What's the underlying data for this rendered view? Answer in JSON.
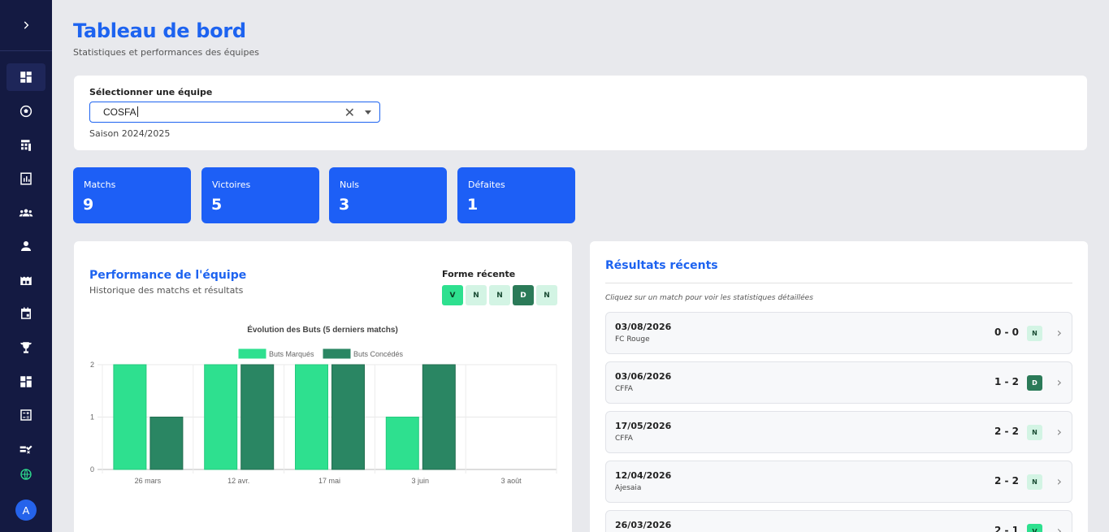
{
  "header": {
    "title": "Tableau de bord",
    "subtitle": "Statistiques et performances des équipes"
  },
  "sidebar": {
    "toggle_icon": "chevron-right-icon",
    "items": [
      {
        "icon": "dashboard-icon",
        "active": true
      },
      {
        "icon": "soccer-ball-icon"
      },
      {
        "icon": "calculator-grid-icon"
      },
      {
        "icon": "bar-chart-icon"
      },
      {
        "icon": "groups-icon"
      },
      {
        "icon": "person-icon"
      },
      {
        "icon": "stadium-icon"
      },
      {
        "icon": "calendar-icon"
      },
      {
        "icon": "trophy-icon"
      },
      {
        "icon": "dashboard-alt-icon"
      },
      {
        "icon": "calculate-icon"
      },
      {
        "icon": "checklist-icon"
      }
    ],
    "globe_icon": "globe-icon",
    "globe_color": "#2ee08f",
    "avatar_letter": "A"
  },
  "team_selector": {
    "label": "Sélectionner une équipe",
    "value": "COSFA",
    "season": "Saison 2024/2025"
  },
  "stats": [
    {
      "label": "Matchs",
      "value": "9"
    },
    {
      "label": "Victoires",
      "value": "5"
    },
    {
      "label": "Nuls",
      "value": "3"
    },
    {
      "label": "Défaites",
      "value": "1"
    }
  ],
  "performance": {
    "title": "Performance de l'équipe",
    "subtitle": "Historique des matchs et résultats",
    "form_title": "Forme récente",
    "form": [
      "V",
      "N",
      "N",
      "D",
      "N"
    ]
  },
  "chart_data": {
    "type": "bar",
    "title": "Évolution des Buts (5 derniers matchs)",
    "categories": [
      "26 mars",
      "12 avr.",
      "17 mai",
      "3 juin",
      "3 août"
    ],
    "series": [
      {
        "name": "Buts Marqués",
        "values": [
          2,
          2,
          2,
          1,
          0
        ],
        "color": "#2ee08f"
      },
      {
        "name": "Buts Concédés",
        "values": [
          1,
          2,
          2,
          2,
          0
        ],
        "color": "#2a8663"
      }
    ],
    "ylim": [
      0,
      2
    ],
    "yticks": [
      "0",
      "1",
      "2"
    ],
    "legend": "top-center",
    "grid": true
  },
  "results": {
    "title": "Résultats récents",
    "hint": "Cliquez sur un match pour voir les statistiques détaillées",
    "matches": [
      {
        "date": "03/08/2026",
        "opponent": "FC Rouge",
        "score": "0 - 0",
        "result": "N"
      },
      {
        "date": "03/06/2026",
        "opponent": "CFFA",
        "score": "1 - 2",
        "result": "D"
      },
      {
        "date": "17/05/2026",
        "opponent": "CFFA",
        "score": "2 - 2",
        "result": "N"
      },
      {
        "date": "12/04/2026",
        "opponent": "Ajesaia",
        "score": "2 - 2",
        "result": "N"
      },
      {
        "date": "26/03/2026",
        "opponent": "",
        "score": "2 - 1",
        "result": "V"
      }
    ]
  }
}
